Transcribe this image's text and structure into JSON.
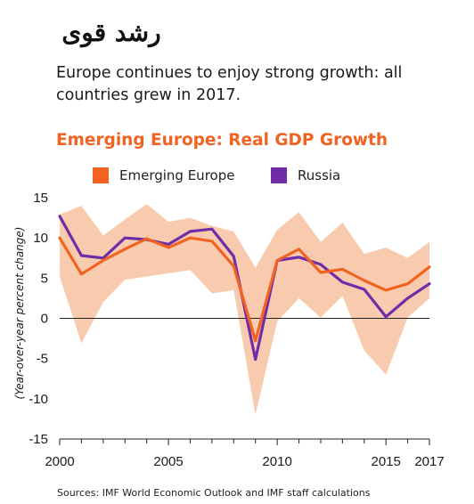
{
  "header": {
    "arabic_title": "رشد قوی",
    "subtitle": "Europe continues to enjoy strong growth: all countries grew in 2017."
  },
  "footer": {
    "source": "Sources: IMF World Economic Outlook and IMF staff calculations"
  },
  "colors": {
    "emerging_europe": "#F26322",
    "russia": "#6F2DA8",
    "range_band": "#F9CBAE",
    "title_accent": "#F26322"
  },
  "chart_data": {
    "type": "line",
    "title": "Emerging Europe: Real GDP Growth",
    "ylabel": "(Year-over-year percent change)",
    "xlabel": "",
    "ylim": [
      -15,
      15
    ],
    "y_ticks": [
      "15",
      "10",
      "5",
      "0",
      "-5",
      "-10",
      "-15"
    ],
    "x_ticks": [
      "2000",
      "2005",
      "2010",
      "2015",
      "2017"
    ],
    "x": [
      2000,
      2001,
      2002,
      2003,
      2004,
      2005,
      2006,
      2007,
      2008,
      2009,
      2010,
      2011,
      2012,
      2013,
      2014,
      2015,
      2016,
      2017
    ],
    "legend": [
      "Emerging Europe",
      "Russia"
    ],
    "legend_position": "top",
    "series": [
      {
        "name": "Emerging Europe",
        "values": [
          10.0,
          5.5,
          7.2,
          8.6,
          9.9,
          8.8,
          10.0,
          9.6,
          6.5,
          -2.8,
          7.2,
          8.6,
          5.7,
          6.1,
          4.7,
          3.5,
          4.3,
          6.4
        ]
      },
      {
        "name": "Russia",
        "values": [
          12.7,
          7.8,
          7.5,
          10.0,
          9.8,
          9.2,
          10.8,
          11.1,
          7.7,
          -5.1,
          7.2,
          7.6,
          6.7,
          4.5,
          3.6,
          0.2,
          2.5,
          4.3
        ]
      }
    ],
    "range_band": {
      "upper": [
        12.9,
        14.0,
        10.3,
        12.3,
        14.2,
        12.0,
        12.5,
        11.5,
        10.8,
        6.3,
        11.0,
        13.2,
        9.5,
        11.9,
        8.0,
        8.8,
        7.5,
        9.5
      ],
      "lower": [
        5.2,
        -3.1,
        2.0,
        4.8,
        5.2,
        5.6,
        6.0,
        3.1,
        3.5,
        -12.0,
        -0.4,
        2.5,
        0.1,
        2.8,
        -4.0,
        -7.0,
        0.1,
        2.5
      ]
    },
    "grid": false,
    "zero_line": true
  }
}
